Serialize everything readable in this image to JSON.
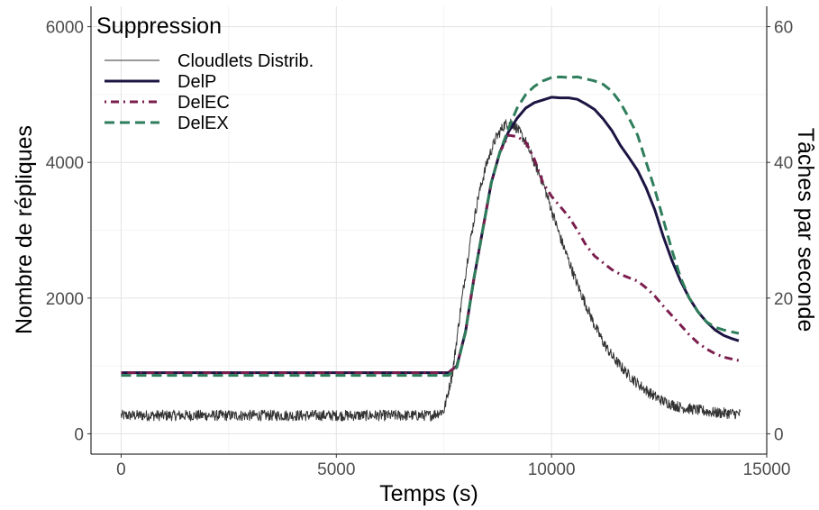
{
  "chart_data": {
    "type": "line",
    "xlabel": "Temps (s)",
    "ylabel": "Nombre de répliques",
    "y2label": "Tâches par seconde",
    "xlim": [
      -700,
      15000
    ],
    "ylim": [
      -300,
      6300
    ],
    "y2lim": [
      -3,
      63
    ],
    "x_ticks": [
      0,
      5000,
      10000,
      15000
    ],
    "y_ticks": [
      0,
      2000,
      4000,
      6000
    ],
    "y2_ticks": [
      0,
      20,
      40,
      60
    ],
    "grid": true,
    "legend": {
      "title": "Suppression",
      "position": "top-left"
    },
    "series": [
      {
        "name": "Cloudlets Distrib.",
        "axis": "y2",
        "color": "#333333",
        "style": "solid",
        "width": 1,
        "noise": 1.6,
        "points": [
          [
            0,
            2.7
          ],
          [
            2000,
            2.7
          ],
          [
            4000,
            2.7
          ],
          [
            6000,
            2.7
          ],
          [
            7200,
            2.7
          ],
          [
            7500,
            3.4
          ],
          [
            7700,
            9
          ],
          [
            7900,
            19
          ],
          [
            8100,
            28
          ],
          [
            8300,
            35
          ],
          [
            8500,
            40
          ],
          [
            8700,
            43.5
          ],
          [
            8900,
            45.5
          ],
          [
            9050,
            46
          ],
          [
            9200,
            45
          ],
          [
            9400,
            43
          ],
          [
            9600,
            40
          ],
          [
            9800,
            37
          ],
          [
            10000,
            33
          ],
          [
            10200,
            29
          ],
          [
            10400,
            25.5
          ],
          [
            10600,
            22
          ],
          [
            10800,
            19
          ],
          [
            11000,
            16
          ],
          [
            11200,
            13.5
          ],
          [
            11400,
            11.5
          ],
          [
            11600,
            10
          ],
          [
            11800,
            8.6
          ],
          [
            12000,
            7.4
          ],
          [
            12200,
            6.4
          ],
          [
            12400,
            5.5
          ],
          [
            12600,
            4.8
          ],
          [
            12800,
            4.3
          ],
          [
            13000,
            3.9
          ],
          [
            13400,
            3.5
          ],
          [
            13800,
            3.1
          ],
          [
            14200,
            3.0
          ],
          [
            14400,
            2.9
          ]
        ]
      },
      {
        "name": "DelP",
        "axis": "y1",
        "color": "#1c1442",
        "style": "solid",
        "width": 3,
        "points": [
          [
            0,
            900
          ],
          [
            7600,
            900
          ],
          [
            7800,
            1000
          ],
          [
            8000,
            1500
          ],
          [
            8200,
            2300
          ],
          [
            8400,
            3000
          ],
          [
            8600,
            3700
          ],
          [
            8800,
            4150
          ],
          [
            9000,
            4450
          ],
          [
            9200,
            4650
          ],
          [
            9400,
            4800
          ],
          [
            9600,
            4880
          ],
          [
            9800,
            4920
          ],
          [
            10000,
            4960
          ],
          [
            10200,
            4950
          ],
          [
            10400,
            4950
          ],
          [
            10600,
            4930
          ],
          [
            10800,
            4860
          ],
          [
            11000,
            4780
          ],
          [
            11200,
            4640
          ],
          [
            11400,
            4470
          ],
          [
            11600,
            4250
          ],
          [
            11800,
            4070
          ],
          [
            12000,
            3880
          ],
          [
            12200,
            3620
          ],
          [
            12400,
            3300
          ],
          [
            12600,
            2900
          ],
          [
            12800,
            2550
          ],
          [
            13000,
            2250
          ],
          [
            13200,
            2000
          ],
          [
            13400,
            1800
          ],
          [
            13600,
            1650
          ],
          [
            13800,
            1530
          ],
          [
            14000,
            1450
          ],
          [
            14200,
            1400
          ],
          [
            14350,
            1370
          ]
        ]
      },
      {
        "name": "DelEC",
        "axis": "y1",
        "color": "#7b1e4e",
        "style": "dotdash",
        "width": 3,
        "points": [
          [
            0,
            900
          ],
          [
            7600,
            900
          ],
          [
            7800,
            1000
          ],
          [
            8000,
            1500
          ],
          [
            8200,
            2300
          ],
          [
            8400,
            3000
          ],
          [
            8600,
            3700
          ],
          [
            8800,
            4150
          ],
          [
            9000,
            4400
          ],
          [
            9200,
            4380
          ],
          [
            9400,
            4300
          ],
          [
            9600,
            4050
          ],
          [
            9800,
            3700
          ],
          [
            10000,
            3500
          ],
          [
            10200,
            3350
          ],
          [
            10400,
            3200
          ],
          [
            10600,
            3000
          ],
          [
            10800,
            2780
          ],
          [
            11000,
            2620
          ],
          [
            11200,
            2520
          ],
          [
            11400,
            2420
          ],
          [
            11600,
            2350
          ],
          [
            11800,
            2300
          ],
          [
            12000,
            2250
          ],
          [
            12200,
            2150
          ],
          [
            12400,
            2030
          ],
          [
            12600,
            1880
          ],
          [
            12800,
            1740
          ],
          [
            13000,
            1600
          ],
          [
            13200,
            1460
          ],
          [
            13400,
            1340
          ],
          [
            13600,
            1250
          ],
          [
            13800,
            1180
          ],
          [
            14000,
            1130
          ],
          [
            14200,
            1100
          ],
          [
            14350,
            1080
          ]
        ]
      },
      {
        "name": "DelEX",
        "axis": "y1",
        "color": "#2e7d5b",
        "style": "dashed",
        "width": 3,
        "points": [
          [
            0,
            860
          ],
          [
            7600,
            860
          ],
          [
            7800,
            980
          ],
          [
            8000,
            1500
          ],
          [
            8200,
            2300
          ],
          [
            8400,
            3000
          ],
          [
            8600,
            3700
          ],
          [
            8800,
            4150
          ],
          [
            9000,
            4500
          ],
          [
            9200,
            4800
          ],
          [
            9400,
            5000
          ],
          [
            9600,
            5120
          ],
          [
            9800,
            5200
          ],
          [
            10000,
            5250
          ],
          [
            10200,
            5260
          ],
          [
            10400,
            5250
          ],
          [
            10600,
            5260
          ],
          [
            10800,
            5230
          ],
          [
            11000,
            5200
          ],
          [
            11200,
            5150
          ],
          [
            11400,
            5050
          ],
          [
            11600,
            4880
          ],
          [
            11800,
            4650
          ],
          [
            12000,
            4400
          ],
          [
            12200,
            4000
          ],
          [
            12400,
            3600
          ],
          [
            12600,
            3150
          ],
          [
            12800,
            2700
          ],
          [
            13000,
            2300
          ],
          [
            13200,
            2000
          ],
          [
            13400,
            1800
          ],
          [
            13600,
            1650
          ],
          [
            13800,
            1570
          ],
          [
            14000,
            1530
          ],
          [
            14200,
            1500
          ],
          [
            14350,
            1480
          ]
        ]
      }
    ]
  }
}
